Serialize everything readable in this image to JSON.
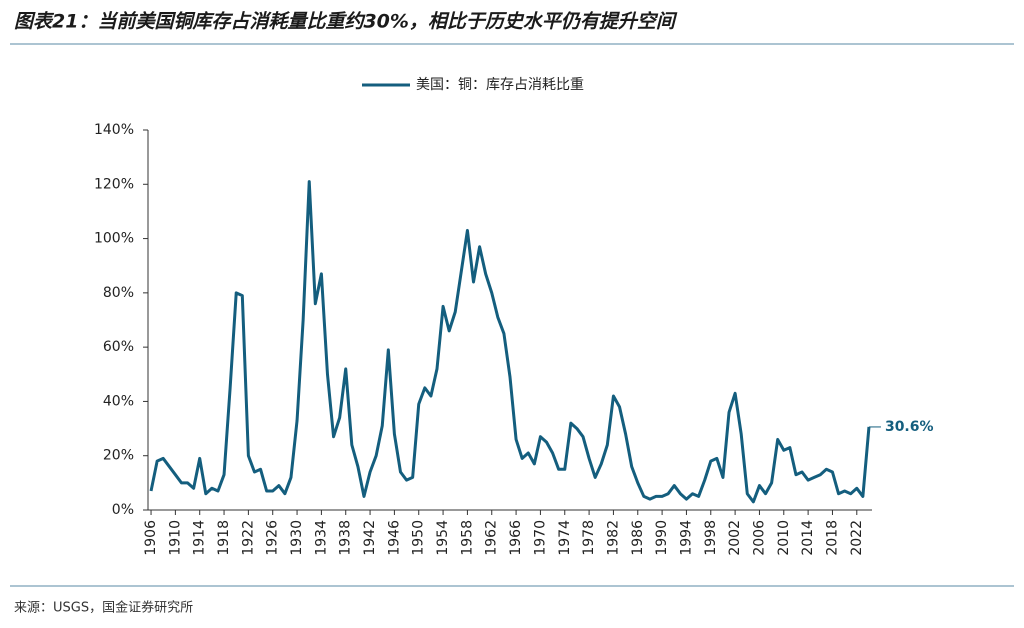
{
  "chart_data": {
    "type": "line",
    "title": "图表21：当前美国铜库存占消耗量比重约30%，相比于历史水平仍有提升空间",
    "source": "来源：USGS，国金证券研究所",
    "legend_position": "top",
    "x": [
      1906,
      1907,
      1908,
      1909,
      1910,
      1911,
      1912,
      1913,
      1914,
      1915,
      1916,
      1917,
      1918,
      1919,
      1920,
      1921,
      1922,
      1923,
      1924,
      1925,
      1926,
      1927,
      1928,
      1929,
      1930,
      1931,
      1932,
      1933,
      1934,
      1935,
      1936,
      1937,
      1938,
      1939,
      1940,
      1941,
      1942,
      1943,
      1944,
      1945,
      1946,
      1947,
      1948,
      1949,
      1950,
      1951,
      1952,
      1953,
      1954,
      1955,
      1956,
      1957,
      1958,
      1959,
      1960,
      1961,
      1962,
      1963,
      1964,
      1965,
      1966,
      1967,
      1968,
      1969,
      1970,
      1971,
      1972,
      1973,
      1974,
      1975,
      1976,
      1977,
      1978,
      1979,
      1980,
      1981,
      1982,
      1983,
      1984,
      1985,
      1986,
      1987,
      1988,
      1989,
      1990,
      1991,
      1992,
      1993,
      1994,
      1995,
      1996,
      1997,
      1998,
      1999,
      2000,
      2001,
      2002,
      2003,
      2004,
      2005,
      2006,
      2007,
      2008,
      2009,
      2010,
      2011,
      2012,
      2013,
      2014,
      2015,
      2016,
      2017,
      2018,
      2019,
      2020,
      2021,
      2022,
      2023,
      2024
    ],
    "series": [
      {
        "name": "美国：铜：库存占消耗比重",
        "color": "#145e7e",
        "values": [
          7,
          18,
          19,
          16,
          13,
          10,
          10,
          8,
          19,
          6,
          8,
          7,
          13,
          45,
          80,
          79,
          20,
          14,
          15,
          7,
          7,
          9,
          6,
          12,
          33,
          70,
          121,
          76,
          87,
          50,
          27,
          34,
          52,
          24,
          16,
          5,
          14,
          20,
          31,
          59,
          28,
          14,
          11,
          12,
          39,
          45,
          42,
          52,
          75,
          66,
          73,
          88,
          103,
          84,
          97,
          87,
          80,
          71,
          65,
          49,
          26,
          19,
          21,
          17,
          27,
          25,
          21,
          15,
          15,
          32,
          30,
          27,
          19,
          12,
          17,
          24,
          42,
          38,
          28,
          16,
          10,
          5,
          4,
          5,
          5,
          6,
          9,
          6,
          4,
          6,
          5,
          11,
          18,
          19,
          12,
          36,
          43,
          28,
          6,
          3,
          9,
          6,
          10,
          26,
          22,
          23,
          13,
          14,
          11,
          12,
          13,
          15,
          14,
          6,
          7,
          6,
          8,
          5,
          30.6
        ]
      }
    ],
    "annotations": [
      {
        "text": "30.6%",
        "x": 2024,
        "value": 30.6
      }
    ],
    "xlim": [
      1905.5,
      2024.5
    ],
    "xticks": [
      1906,
      1910,
      1914,
      1918,
      1922,
      1926,
      1930,
      1934,
      1938,
      1942,
      1946,
      1950,
      1954,
      1958,
      1962,
      1966,
      1970,
      1974,
      1978,
      1982,
      1986,
      1990,
      1994,
      1998,
      2002,
      2006,
      2010,
      2014,
      2018,
      2022
    ],
    "ylim": [
      0,
      140
    ],
    "yticks": [
      {
        "value": 0,
        "label": "0%"
      },
      {
        "value": 20,
        "label": "20%"
      },
      {
        "value": 40,
        "label": "40%"
      },
      {
        "value": 60,
        "label": "60%"
      },
      {
        "value": 80,
        "label": "80%"
      },
      {
        "value": 100,
        "label": "100%"
      },
      {
        "value": 120,
        "label": "120%"
      },
      {
        "value": 140,
        "label": "140%"
      }
    ],
    "grid": false
  }
}
